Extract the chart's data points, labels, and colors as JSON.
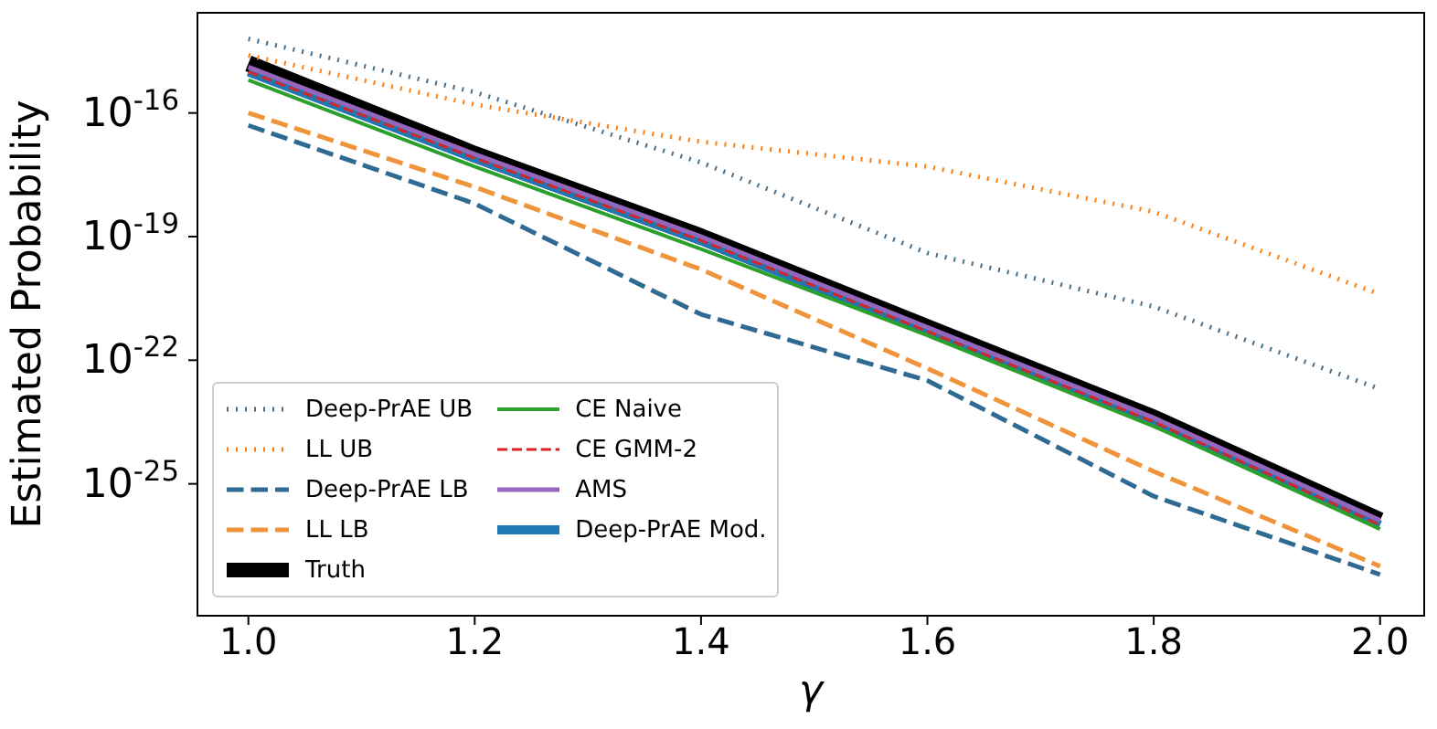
{
  "chart_data": {
    "type": "line",
    "xlabel": "γ",
    "ylabel": "Estimated Probability",
    "x": [
      1.0,
      1.2,
      1.4,
      1.6,
      1.8,
      2.0
    ],
    "series": [
      {
        "name": "Deep-PrAE UB",
        "color": "#4a6f8a",
        "line_style": "dotted",
        "values": [
          6.3e-15,
          3.2e-16,
          6.3e-18,
          4e-20,
          2e-21,
          2e-23
        ]
      },
      {
        "name": "LL UB",
        "color": "#ff7f0e",
        "line_style": "dotted",
        "values": [
          2.5e-15,
          1.6e-16,
          2e-17,
          5e-18,
          4e-19,
          4e-21
        ]
      },
      {
        "name": "Deep-PrAE LB",
        "color": "#2f6a92",
        "line_style": "dashed",
        "values": [
          5e-17,
          6.3e-19,
          1.3e-21,
          3.2e-23,
          5e-26,
          6.3e-28
        ]
      },
      {
        "name": "LL LB",
        "color": "#f0943c",
        "line_style": "dashed",
        "values": [
          1e-16,
          1.6e-18,
          1.6e-20,
          6.3e-23,
          2e-25,
          1e-27
        ]
      },
      {
        "name": "Truth",
        "color": "#000000",
        "line_style": "solid",
        "values": [
          1.6e-15,
          1e-17,
          1e-19,
          6.3e-22,
          4e-24,
          1.3e-26
        ]
      },
      {
        "name": "CE Naive",
        "color": "#2ca02c",
        "line_style": "solid",
        "values": [
          6.3e-16,
          5e-18,
          5e-20,
          4e-22,
          2.5e-24,
          8e-27
        ]
      },
      {
        "name": "CE GMM-2",
        "color": "#d62728",
        "line_style": "dashed",
        "values": [
          1e-15,
          8e-18,
          8e-20,
          5e-22,
          3.2e-24,
          1e-26
        ]
      },
      {
        "name": "AMS",
        "color": "#9467bd",
        "line_style": "solid",
        "values": [
          1.3e-15,
          1e-17,
          1e-19,
          6.3e-22,
          4e-24,
          1.3e-26
        ]
      },
      {
        "name": "Deep-PrAE Mod.",
        "color": "#1f77b4",
        "line_style": "solid",
        "values": [
          1e-15,
          8e-18,
          8e-20,
          5e-22,
          3.2e-24,
          1e-26
        ]
      }
    ],
    "xlim": [
      0.955,
      2.039
    ],
    "xticks": [
      {
        "value": 1.0,
        "label": "1.0"
      },
      {
        "value": 1.2,
        "label": "1.2"
      },
      {
        "value": 1.4,
        "label": "1.4"
      },
      {
        "value": 1.6,
        "label": "1.6"
      },
      {
        "value": 1.8,
        "label": "1.8"
      },
      {
        "value": 2.0,
        "label": "2.0"
      }
    ],
    "ylim": [
      6.3e-29,
      2.7e-14
    ],
    "yticks": [
      {
        "value": 1e-25,
        "label": "10$^{-25}$"
      },
      {
        "value": 1e-22,
        "label": "10$^{-22}$"
      },
      {
        "value": 1e-19,
        "label": "10$^{-19}$"
      },
      {
        "value": 1e-16,
        "label": "10$^{-16}$"
      }
    ],
    "log": "y",
    "grid": false,
    "legend": "bottom left",
    "marker": "none"
  }
}
